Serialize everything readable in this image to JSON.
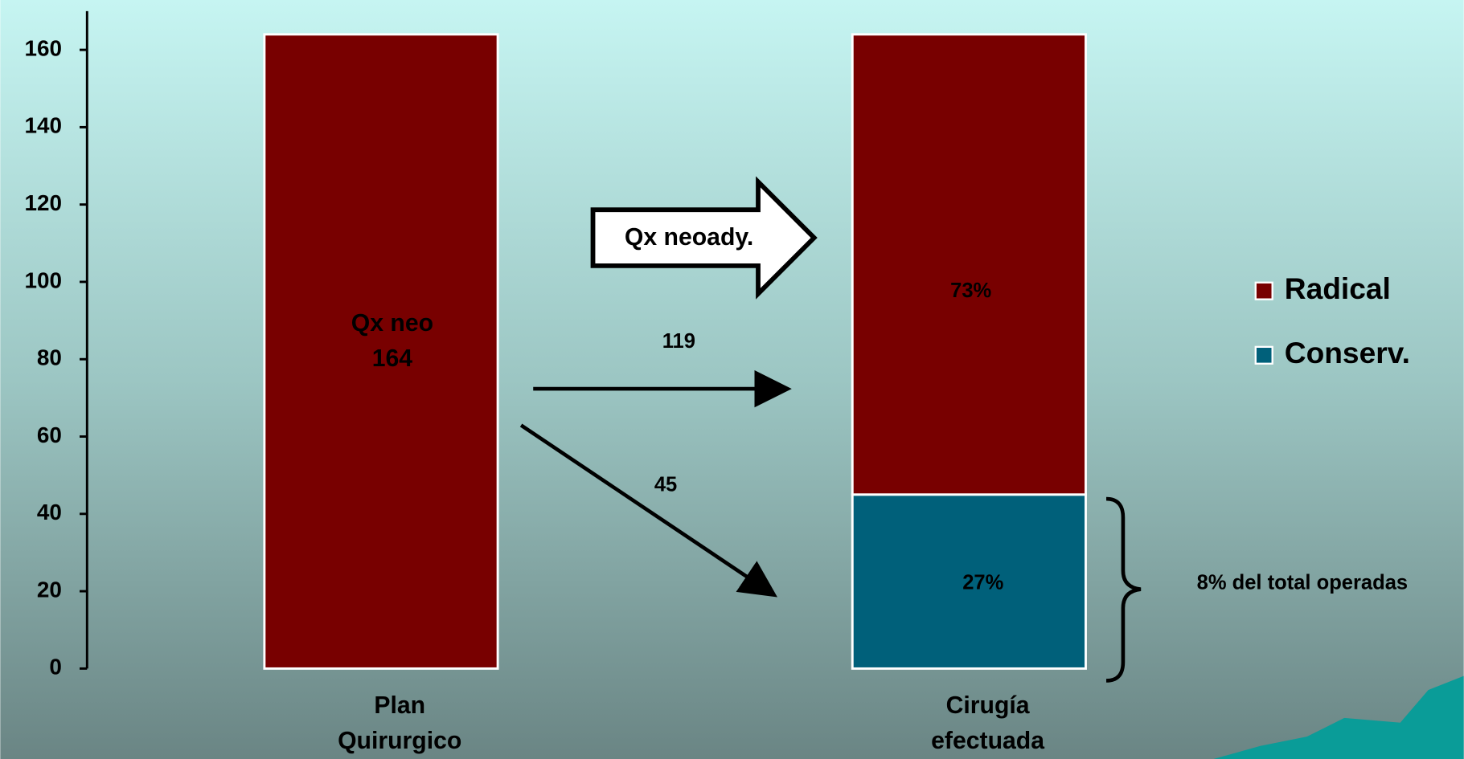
{
  "chart_data": {
    "type": "stacked_bar",
    "categories": [
      "Plan Quirurgico",
      "Cirugía efectuada"
    ],
    "series": [
      {
        "name": "Radical",
        "color": "#780000",
        "values": [
          164,
          119
        ]
      },
      {
        "name": "Conserv.",
        "color": "#00607a",
        "values": [
          null,
          45
        ]
      }
    ],
    "ylim": [
      0,
      170
    ],
    "yticks": [
      0,
      20,
      40,
      60,
      80,
      100,
      120,
      140,
      160
    ],
    "legend": "right",
    "annotations": [
      "Qx neo",
      "Qx neoady.",
      "73%",
      "27%",
      "8% del total operadas"
    ]
  }
}
